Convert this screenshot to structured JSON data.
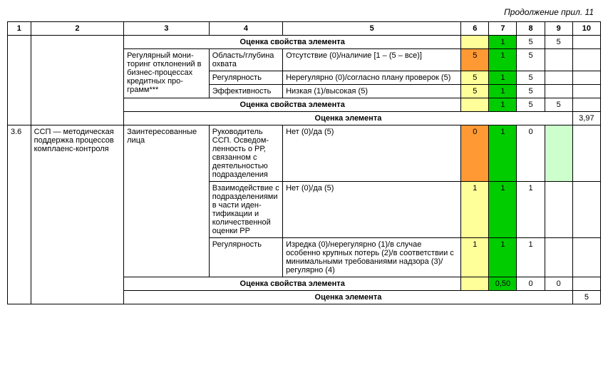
{
  "caption": "Продолжение прил. 11",
  "headers": [
    "1",
    "2",
    "3",
    "4",
    "5",
    "6",
    "7",
    "8",
    "9",
    "10"
  ],
  "labels": {
    "ocenka_svoistva": "Оценка свойства элемента",
    "ocenka_elementa": "Оценка элемента"
  },
  "row1": {
    "c7": "1",
    "c8": "5",
    "c9": "5"
  },
  "monitorBlock": {
    "c3": "Регулярный мони­торинг отклоне­ний в бизнес-процессах кре­дитных про­грамм***",
    "rows": [
      {
        "c4": "Область/глуби­на охвата",
        "c5": "Отсутствие (0)/наличие [1 – (5 – все)]",
        "c6": "5",
        "c7": "1",
        "c8": "5"
      },
      {
        "c4": "Регулярность",
        "c5": "Нерегулярно (0)/согласно плану про­верок (5)",
        "c6": "5",
        "c7": "1",
        "c8": "5"
      },
      {
        "c4": "Эффективность",
        "c5": "Низкая (1)/высокая (5)",
        "c6": "5",
        "c7": "1",
        "c8": "5"
      }
    ]
  },
  "summary1": {
    "c7": "1",
    "c8": "5",
    "c9": "5"
  },
  "elementScore1": "3,97",
  "sspBlock": {
    "c1": "3.6",
    "c2": "ССП — методиче­ская поддержка процессов ком­плаенс-контроля",
    "c3": "Заинтересован­ные лица",
    "rows": [
      {
        "c4": "Руководитель ССП. Осведом­ленность о РР, связанном с деятельно­стью подраз­деления",
        "c5": "Нет (0)/да (5)",
        "c6": "0",
        "c7": "1",
        "c8": "0"
      },
      {
        "c4": "Взаимодейст­вие с подраз­делениями в части иден­тификации и количествен­ной оценки РР",
        "c5": "Нет (0)/да (5)",
        "c6": "1",
        "c7": "1",
        "c8": "1"
      },
      {
        "c4": "Регулярность",
        "c5": "Изредка (0)/нерегулярно (1)/в случае особенно крупных потерь (2)/в соот­ветствии с минимальными требования­ми надзора (3)/регулярно (4)",
        "c6": "1",
        "c7": "1",
        "c8": "1"
      }
    ]
  },
  "summary2": {
    "c7": "0,50",
    "c8": "0",
    "c9": "0"
  },
  "elementScore2": "5",
  "colors": {
    "yellow": "#ffff99",
    "green": "#00cc00",
    "lightgreen": "#ccffcc",
    "orange": "#ff9933"
  }
}
